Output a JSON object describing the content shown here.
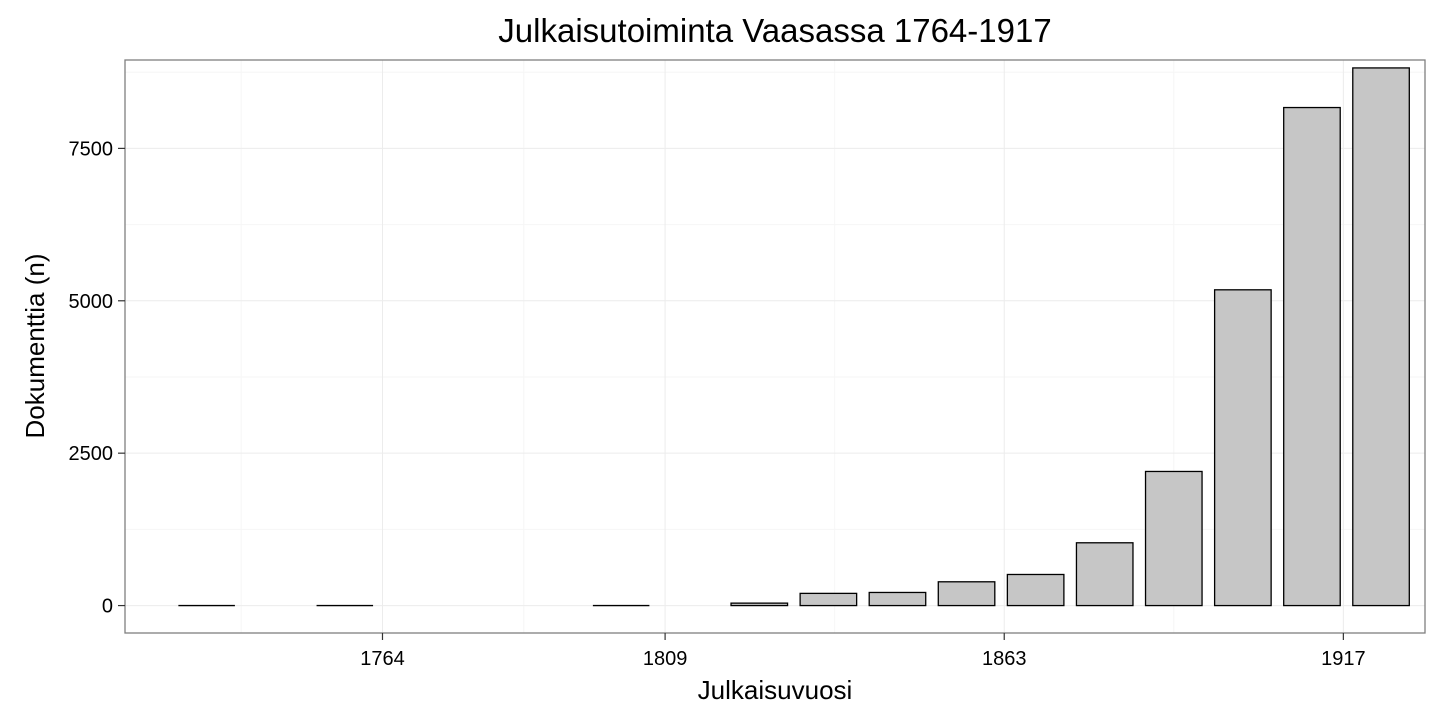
{
  "chart_data": {
    "type": "bar",
    "title": "Julkaisutoiminta Vaasassa 1764-1917",
    "xlabel": "Julkaisuvuosi",
    "ylabel": "Dokumenttia (n)",
    "ylim": [
      -450,
      8950
    ],
    "y_ticks": [
      0,
      2500,
      5000,
      7500
    ],
    "y_minor_ticks": [
      1250,
      3750,
      6250,
      8750
    ],
    "x_range": [
      1723,
      1930
    ],
    "x_ticks": [
      1764,
      1809,
      1863,
      1917
    ],
    "bar_width_years": 9,
    "bars": [
      {
        "x": 1736,
        "value": 3
      },
      {
        "x": 1758,
        "value": 3
      },
      {
        "x": 1802,
        "value": 3
      },
      {
        "x": 1824,
        "value": 40
      },
      {
        "x": 1835,
        "value": 200
      },
      {
        "x": 1846,
        "value": 215
      },
      {
        "x": 1857,
        "value": 390
      },
      {
        "x": 1868,
        "value": 510
      },
      {
        "x": 1879,
        "value": 1030
      },
      {
        "x": 1890,
        "value": 2200
      },
      {
        "x": 1901,
        "value": 5180
      },
      {
        "x": 1912,
        "value": 8170
      },
      {
        "x": 1923,
        "value": 8820
      }
    ],
    "grid": true,
    "legend": "none",
    "colors": {
      "bar_fill": "#c6c6c6",
      "bar_stroke": "#000000",
      "panel_border": "#7f7f7f",
      "grid": "#ececec"
    }
  }
}
